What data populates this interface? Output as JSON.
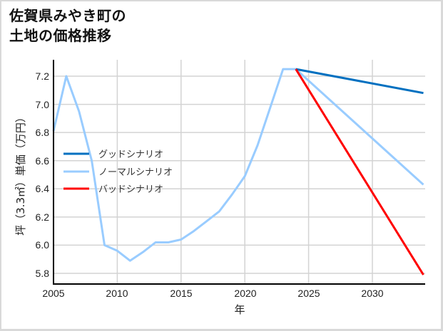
{
  "title": {
    "line1": "佐賀県みやき町の",
    "line2": "土地の価格推移"
  },
  "colors": {
    "good": "#0070c0",
    "normal": "#99ccff",
    "bad": "#ff0000",
    "grid": "#d3d3d3",
    "axis": "#000000"
  },
  "chart_data": {
    "type": "line",
    "title": "佐賀県みやき町の土地の価格推移",
    "xlabel": "年",
    "ylabel": "坪（3.3㎡）単価（万円）",
    "xlim": [
      2005,
      2034
    ],
    "ylim": [
      5.72,
      7.32
    ],
    "x_ticks": [
      2005,
      2010,
      2015,
      2020,
      2025,
      2030
    ],
    "y_ticks": [
      5.8,
      6.0,
      6.2,
      6.4,
      6.6,
      6.8,
      7.0,
      7.2
    ],
    "grid": true,
    "legend_position": "left-middle",
    "series": [
      {
        "name": "グッドシナリオ",
        "color": "#0070c0",
        "x": [
          2024,
          2034
        ],
        "values": [
          7.25,
          7.08
        ]
      },
      {
        "name": "ノーマルシナリオ",
        "color": "#99ccff",
        "x": [
          2005,
          2006,
          2007,
          2008,
          2009,
          2010,
          2011,
          2012,
          2013,
          2014,
          2015,
          2016,
          2017,
          2018,
          2019,
          2020,
          2021,
          2022,
          2023,
          2024,
          2034
        ],
        "values": [
          6.81,
          7.2,
          6.95,
          6.6,
          6.0,
          5.96,
          5.89,
          5.95,
          6.02,
          6.02,
          6.04,
          6.1,
          6.17,
          6.24,
          6.36,
          6.49,
          6.71,
          6.98,
          7.25,
          7.25,
          6.43
        ]
      },
      {
        "name": "バッドシナリオ",
        "color": "#ff0000",
        "x": [
          2024,
          2034
        ],
        "values": [
          7.25,
          5.79
        ]
      }
    ]
  },
  "axis": {
    "x_label": "年",
    "y_label": "坪（3.3㎡）単価（万円）",
    "x_ticks": [
      "2005",
      "2010",
      "2015",
      "2020",
      "2025",
      "2030"
    ],
    "y_ticks": [
      "7.2",
      "7.0",
      "6.8",
      "6.6",
      "6.4",
      "6.2",
      "6.0",
      "5.8"
    ]
  },
  "legend": {
    "items": [
      {
        "label": "グッドシナリオ",
        "color": "#0070c0"
      },
      {
        "label": "ノーマルシナリオ",
        "color": "#99ccff"
      },
      {
        "label": "バッドシナリオ",
        "color": "#ff0000"
      }
    ]
  }
}
